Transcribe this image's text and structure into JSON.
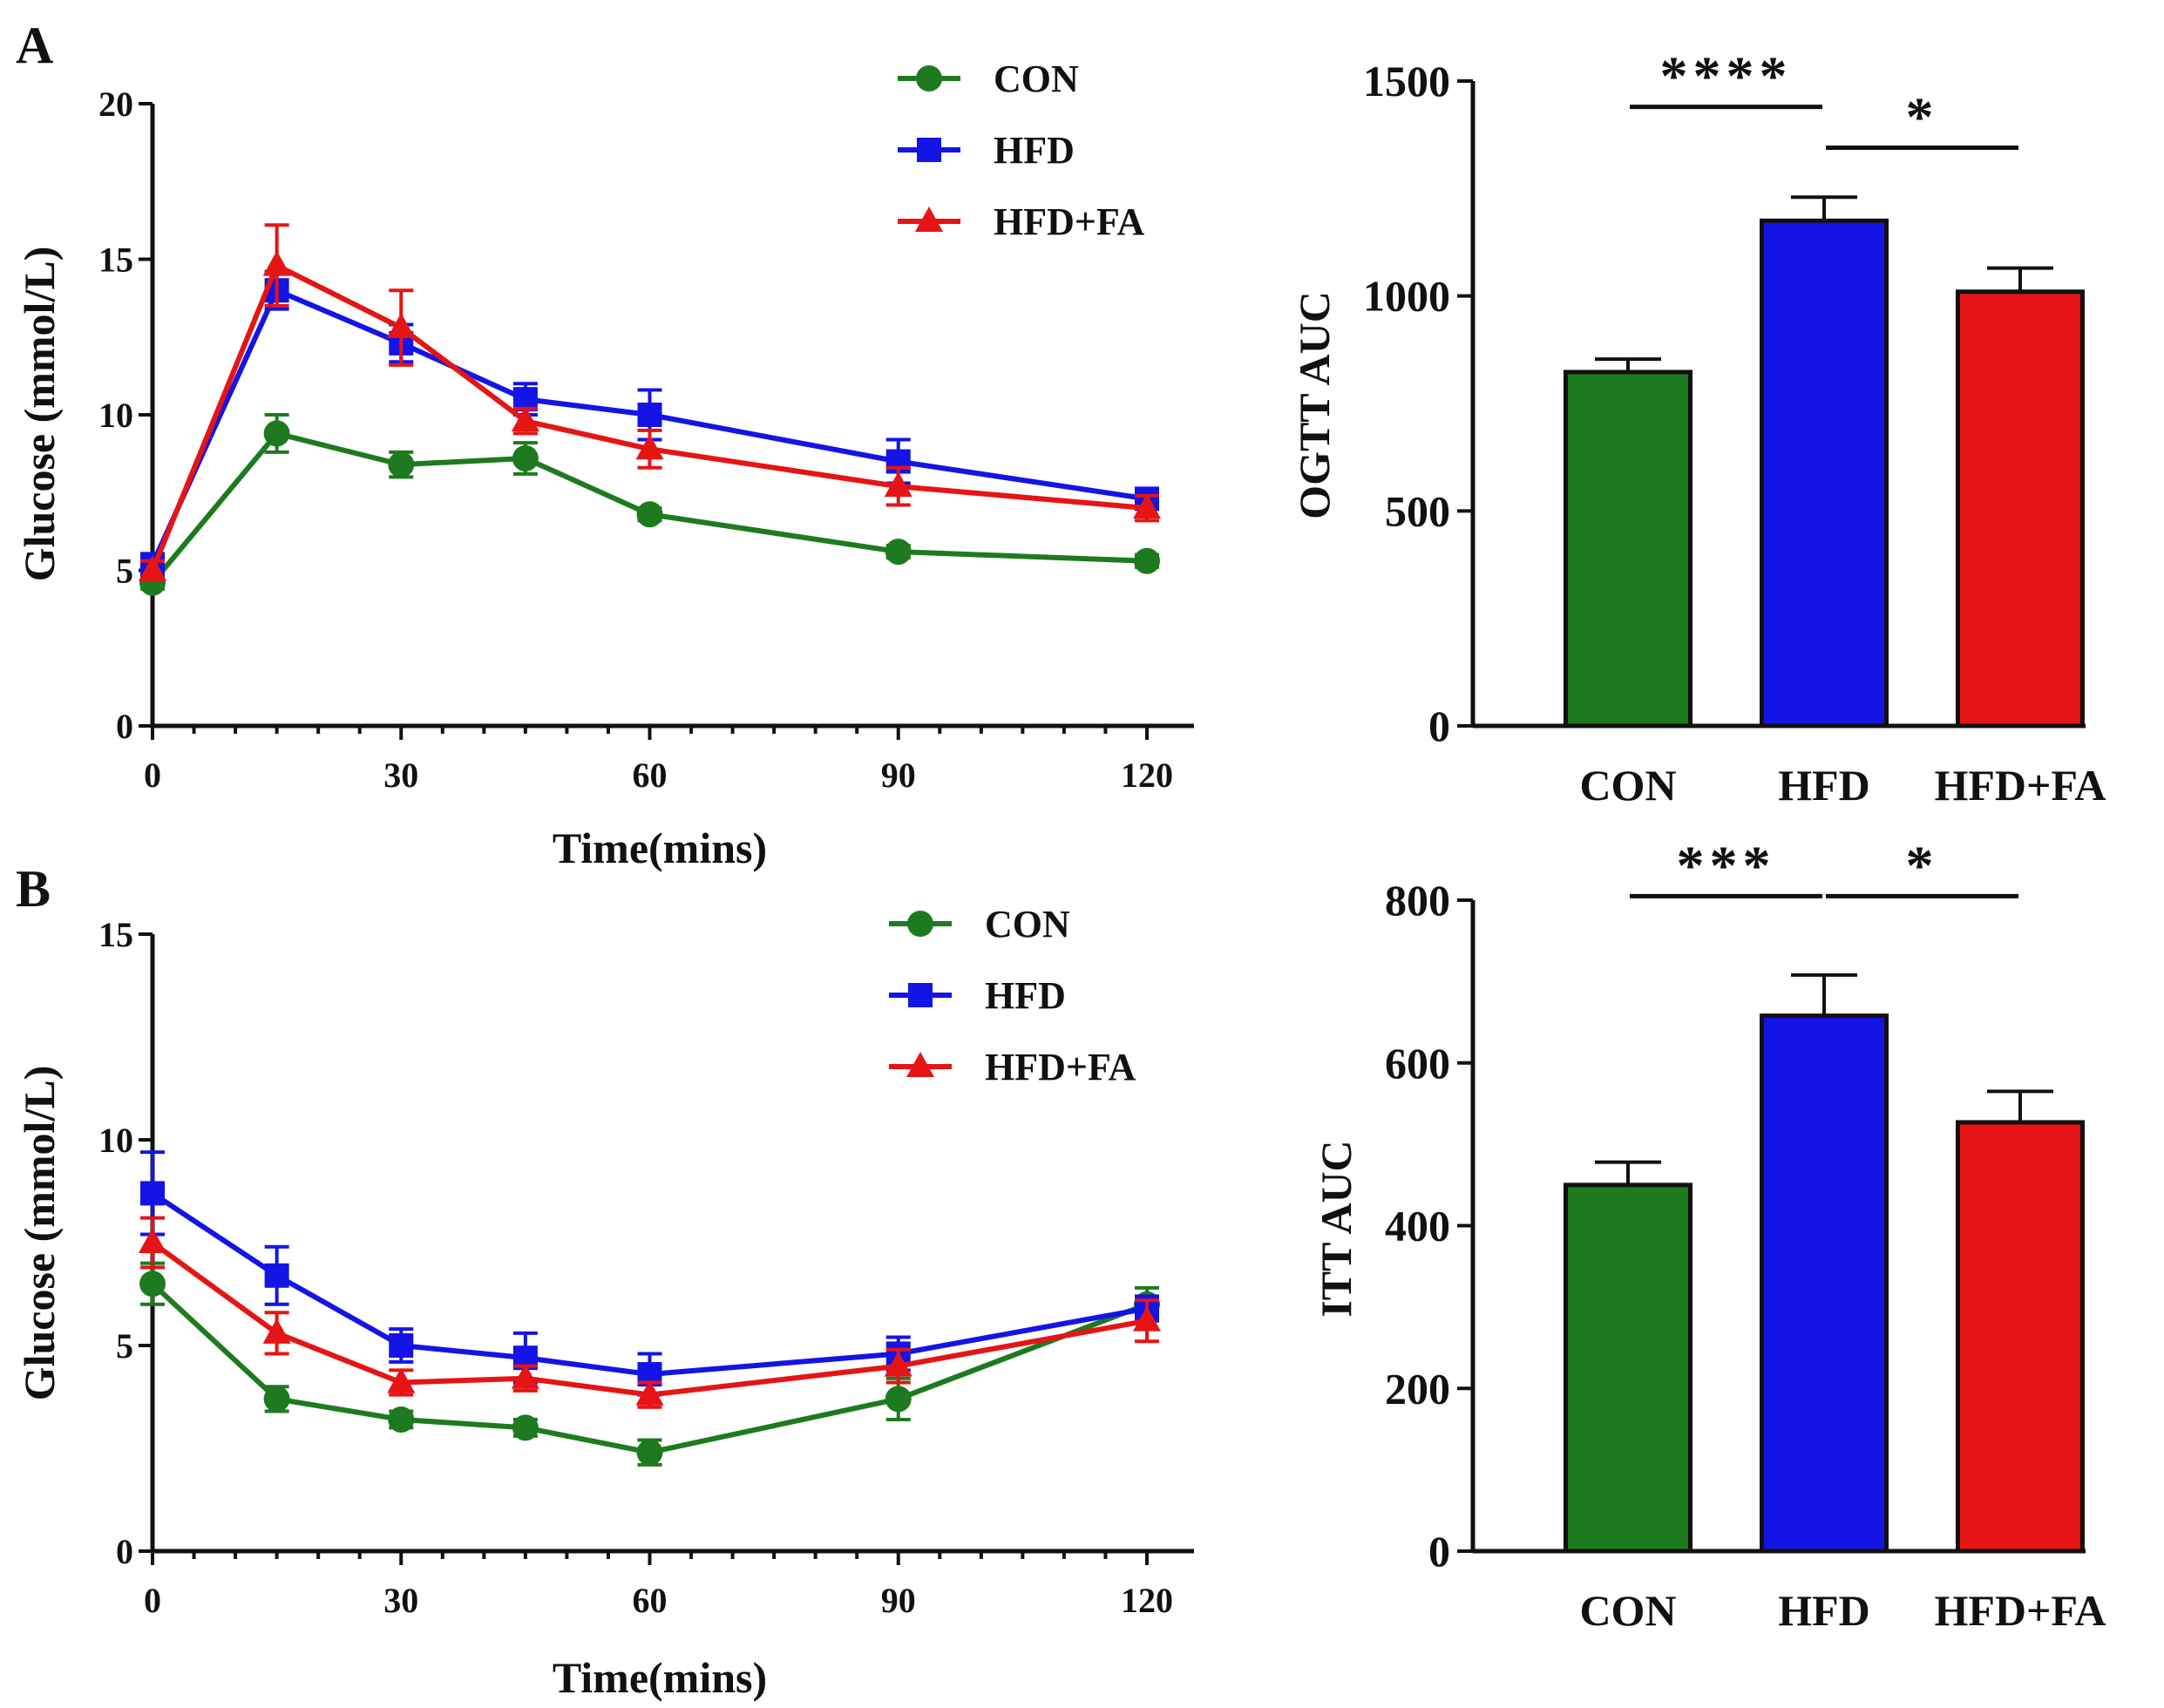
{
  "colors": {
    "CON": "#1e7a1e",
    "HFD": "#1414e6",
    "HFD+FA": "#e61414",
    "axis": "#111111"
  },
  "chart_data": [
    {
      "id": "line-A",
      "panel": "A",
      "type": "line",
      "title": "",
      "xlabel": "Time(mins)",
      "ylabel": "Glucose (mmol/L)",
      "xlim": [
        0,
        120
      ],
      "ylim": [
        0,
        20
      ],
      "xticks": [
        0,
        30,
        60,
        90,
        120
      ],
      "yticks": [
        0,
        5,
        10,
        15,
        20
      ],
      "x_minor_step": 5,
      "legend_position": "top-right",
      "legend": [
        "CON",
        "HFD",
        "HFD+FA"
      ],
      "x": [
        0,
        15,
        30,
        45,
        60,
        90,
        120
      ],
      "series": [
        {
          "name": "CON",
          "marker": "circle",
          "values": [
            4.6,
            9.4,
            8.4,
            8.6,
            6.8,
            5.6,
            5.3
          ],
          "errors": [
            0.2,
            0.6,
            0.4,
            0.5,
            0.2,
            0.2,
            0.2
          ]
        },
        {
          "name": "HFD",
          "marker": "square",
          "values": [
            5.2,
            14.0,
            12.3,
            10.5,
            10.0,
            8.5,
            7.3
          ],
          "errors": [
            0.3,
            0.6,
            0.6,
            0.5,
            0.8,
            0.7,
            0.3
          ]
        },
        {
          "name": "HFD+FA",
          "marker": "triangle",
          "values": [
            5.0,
            14.8,
            12.8,
            9.8,
            8.9,
            7.7,
            7.0
          ],
          "errors": [
            0.3,
            1.3,
            1.2,
            0.4,
            0.6,
            0.6,
            0.4
          ]
        }
      ]
    },
    {
      "id": "bar-A",
      "panel": "A",
      "type": "bar",
      "title": "",
      "xlabel": "",
      "ylabel": "OGTT AUC",
      "ylim": [
        0,
        1500
      ],
      "yticks": [
        0,
        500,
        1000,
        1500
      ],
      "categories": [
        "CON",
        "HFD",
        "HFD+FA"
      ],
      "values": [
        823,
        1175,
        1010
      ],
      "errors": [
        30,
        55,
        55
      ],
      "annotations": [
        {
          "from": "CON",
          "to": "HFD",
          "label": "****",
          "y": 1440
        },
        {
          "from": "HFD",
          "to": "HFD+FA",
          "label": "*",
          "y": 1345
        }
      ]
    },
    {
      "id": "line-B",
      "panel": "B",
      "type": "line",
      "title": "",
      "xlabel": "Time(mins)",
      "ylabel": "Glucose (mmol/L)",
      "xlim": [
        0,
        120
      ],
      "ylim": [
        0,
        15
      ],
      "xticks": [
        0,
        30,
        60,
        90,
        120
      ],
      "yticks": [
        0,
        5,
        10,
        15
      ],
      "x_minor_step": 5,
      "legend_position": "top-right",
      "legend": [
        "CON",
        "HFD",
        "HFD+FA"
      ],
      "x": [
        0,
        15,
        30,
        45,
        60,
        90,
        120
      ],
      "series": [
        {
          "name": "CON",
          "marker": "circle",
          "values": [
            6.5,
            3.7,
            3.2,
            3.0,
            2.4,
            3.7,
            6.0
          ],
          "errors": [
            0.5,
            0.3,
            0.2,
            0.2,
            0.3,
            0.5,
            0.4
          ]
        },
        {
          "name": "HFD",
          "marker": "square",
          "values": [
            8.7,
            6.7,
            5.0,
            4.7,
            4.3,
            4.8,
            5.9
          ],
          "errors": [
            1.0,
            0.7,
            0.4,
            0.6,
            0.5,
            0.4,
            0.3
          ]
        },
        {
          "name": "HFD+FA",
          "marker": "triangle",
          "values": [
            7.5,
            5.3,
            4.1,
            4.2,
            3.8,
            4.5,
            5.6
          ],
          "errors": [
            0.6,
            0.5,
            0.3,
            0.3,
            0.3,
            0.4,
            0.5
          ]
        }
      ]
    },
    {
      "id": "bar-B",
      "panel": "B",
      "type": "bar",
      "title": "",
      "xlabel": "",
      "ylabel": "ITT AUC",
      "ylim": [
        0,
        800
      ],
      "yticks": [
        0,
        200,
        400,
        600,
        800
      ],
      "categories": [
        "CON",
        "HFD",
        "HFD+FA"
      ],
      "values": [
        450,
        658,
        527
      ],
      "errors": [
        28,
        50,
        38
      ],
      "annotations": [
        {
          "from": "CON",
          "to": "HFD",
          "label": "***",
          "y": 805
        },
        {
          "from": "HFD",
          "to": "HFD+FA",
          "label": "*",
          "y": 805
        }
      ]
    }
  ]
}
